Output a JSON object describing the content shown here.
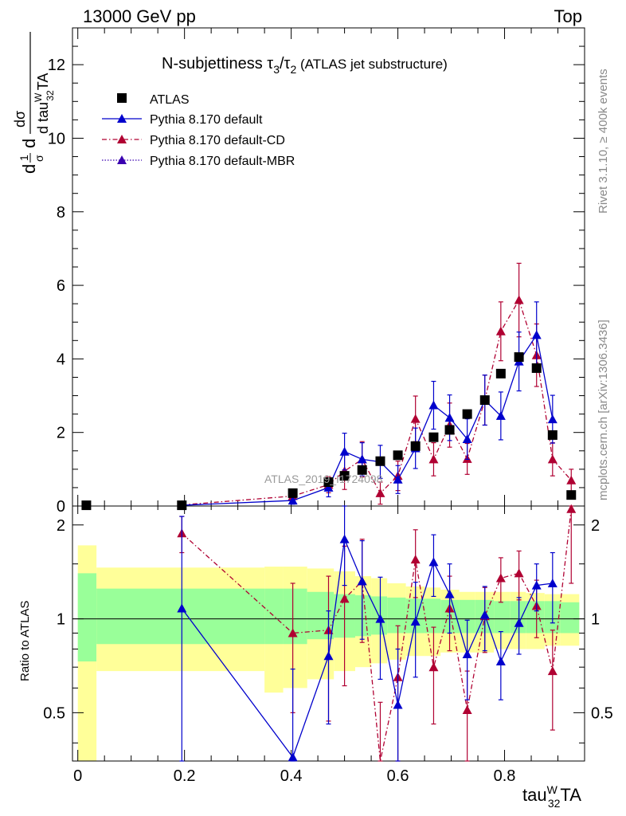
{
  "header": {
    "left": "13000 GeV pp",
    "right": "Top"
  },
  "title": {
    "main": "N-subjettiness τ",
    "sub1": "3",
    "slash": "/τ",
    "sub2": "2",
    "suffix": " (ATLAS jet substructure)"
  },
  "side_labels": {
    "rivet": "Rivet 3.1.10, ≥ 400k events",
    "mcplots": "mcplots.cern.ch [arXiv:1306.3436]"
  },
  "watermark": "ATLAS_2019_I1724098",
  "y_label_main": {
    "d1": "d",
    "frac_num": "1",
    "frac_den": "σ",
    "d2": "d",
    "sig": "dσ",
    "den": "d tau",
    "den_sup": "W",
    "den_sub": "32",
    "den_end": "TA"
  },
  "y_label_ratio": "Ratio to ATLAS",
  "x_label": {
    "base": "tau",
    "sup": "W",
    "sub": "32",
    "end": "TA"
  },
  "legend": [
    {
      "label": "ATLAS",
      "color": "#000000",
      "style": "square"
    },
    {
      "label": "Pythia 8.170 default",
      "color": "#0000cc",
      "style": "solid"
    },
    {
      "label": "Pythia 8.170 default-CD",
      "color": "#b00032",
      "style": "dashdot"
    },
    {
      "label": "Pythia 8.170 default-MBR",
      "color": "#3a00b0",
      "style": "dotted"
    }
  ],
  "chart_data": {
    "type": "scatter",
    "xlim": [
      -0.01,
      0.95
    ],
    "ylim_main": [
      0,
      13
    ],
    "ylim_ratio": [
      0.35,
      2.3
    ],
    "xticks": [
      0,
      0.2,
      0.4,
      0.6,
      0.8
    ],
    "xtick_labels": [
      "0",
      "0.2",
      "0.4",
      "0.6",
      "0.8"
    ],
    "yticks_main": [
      0,
      2,
      4,
      6,
      8,
      10,
      12
    ],
    "yticks_main_labels": [
      "0",
      "2",
      "4",
      "6",
      "8",
      "10",
      "12"
    ],
    "yticks_ratio": [
      0.5,
      1,
      2
    ],
    "yticks_ratio_labels": [
      "0.5",
      "1",
      "2"
    ],
    "atlas": {
      "x": [
        0.016,
        0.195,
        0.403,
        0.47,
        0.5,
        0.533,
        0.567,
        0.6,
        0.633,
        0.667,
        0.697,
        0.73,
        0.763,
        0.793,
        0.827,
        0.86,
        0.89,
        0.925
      ],
      "y": [
        0.02,
        0.02,
        0.35,
        0.65,
        0.82,
        0.98,
        1.22,
        1.38,
        1.63,
        1.87,
        2.07,
        2.5,
        2.88,
        3.6,
        4.05,
        3.75,
        1.93,
        0.3
      ]
    },
    "default": {
      "x": [
        0.195,
        0.403,
        0.47,
        0.5,
        0.533,
        0.567,
        0.6,
        0.633,
        0.667,
        0.697,
        0.73,
        0.763,
        0.793,
        0.827,
        0.86,
        0.89
      ],
      "y": [
        0.02,
        0.15,
        0.5,
        1.48,
        1.27,
        1.2,
        0.72,
        1.57,
        2.74,
        2.4,
        1.82,
        2.88,
        2.45,
        3.93,
        4.65,
        2.36
      ],
      "err": [
        0.0,
        0.1,
        0.25,
        0.5,
        0.45,
        0.45,
        0.38,
        0.55,
        0.65,
        0.62,
        0.55,
        0.68,
        0.65,
        0.8,
        0.9,
        0.65
      ]
    },
    "default_cd": {
      "x": [
        0.195,
        0.403,
        0.47,
        0.5,
        0.533,
        0.567,
        0.6,
        0.633,
        0.667,
        0.697,
        0.73,
        0.763,
        0.793,
        0.827,
        0.86,
        0.89,
        0.925
      ],
      "y": [
        0.03,
        0.27,
        0.58,
        0.95,
        1.27,
        0.35,
        0.82,
        2.37,
        1.27,
        2.2,
        1.28,
        2.88,
        4.75,
        5.6,
        4.1,
        1.27,
        0.7
      ],
      "err": [
        0.0,
        0.12,
        0.22,
        0.5,
        0.48,
        0.3,
        0.4,
        0.62,
        0.45,
        0.6,
        0.42,
        0.68,
        0.8,
        1.0,
        0.85,
        0.45,
        0.3
      ]
    },
    "ratio_default": {
      "x": [
        0.195,
        0.403,
        0.47,
        0.5,
        0.533,
        0.567,
        0.6,
        0.633,
        0.667,
        0.697,
        0.73,
        0.763,
        0.793,
        0.827,
        0.86,
        0.89
      ],
      "y": [
        1.08,
        0.36,
        0.76,
        1.8,
        1.32,
        1.0,
        0.53,
        0.98,
        1.52,
        1.2,
        0.77,
        1.03,
        0.73,
        0.97,
        1.28,
        1.3
      ],
      "err": [
        1.05,
        0.33,
        0.3,
        0.52,
        0.46,
        0.36,
        0.27,
        0.33,
        0.34,
        0.3,
        0.22,
        0.24,
        0.18,
        0.2,
        0.22,
        0.33
      ]
    },
    "ratio_cd": {
      "x": [
        0.195,
        0.403,
        0.47,
        0.5,
        0.533,
        0.567,
        0.6,
        0.633,
        0.667,
        0.697,
        0.73,
        0.763,
        0.793,
        0.827,
        0.86,
        0.89,
        0.925
      ],
      "y": [
        1.88,
        0.9,
        0.92,
        1.16,
        1.32,
        0.29,
        0.65,
        1.55,
        0.7,
        1.08,
        0.51,
        1.02,
        1.35,
        1.4,
        1.1,
        0.68,
        2.25
      ],
      "err": [
        0.25,
        0.4,
        0.45,
        0.55,
        0.48,
        0.25,
        0.3,
        0.38,
        0.24,
        0.29,
        0.17,
        0.24,
        0.22,
        0.25,
        0.23,
        0.24,
        0.95
      ]
    },
    "bands": {
      "x_edges": [
        0.0,
        0.035,
        0.35,
        0.385,
        0.43,
        0.48,
        0.52,
        0.55,
        0.58,
        0.615,
        0.65,
        0.68,
        0.715,
        0.745,
        0.78,
        0.81,
        0.84,
        0.875,
        0.905,
        0.94
      ],
      "inner_lo": [
        0.73,
        0.83,
        0.83,
        0.83,
        0.86,
        0.87,
        0.88,
        0.89,
        0.9,
        0.9,
        0.9,
        0.9,
        0.9,
        0.9,
        0.9,
        0.9,
        0.9,
        0.9,
        0.9
      ],
      "inner_hi": [
        1.4,
        1.25,
        1.25,
        1.25,
        1.22,
        1.2,
        1.19,
        1.18,
        1.17,
        1.16,
        1.16,
        1.15,
        1.15,
        1.15,
        1.14,
        1.14,
        1.14,
        1.14,
        1.13
      ],
      "outer_lo": [
        0.0,
        0.68,
        0.58,
        0.6,
        0.64,
        0.68,
        0.7,
        0.72,
        0.74,
        0.76,
        0.76,
        0.78,
        0.78,
        0.78,
        0.8,
        0.8,
        0.8,
        0.82,
        0.82
      ],
      "outer_hi": [
        1.72,
        1.46,
        1.47,
        1.47,
        1.45,
        1.42,
        1.37,
        1.35,
        1.3,
        1.27,
        1.26,
        1.24,
        1.22,
        1.22,
        1.22,
        1.22,
        1.21,
        1.2,
        1.2
      ]
    },
    "colors": {
      "atlas": "#000000",
      "default": "#0000cc",
      "cd": "#b00032",
      "band_inner": "#99ff99",
      "band_outer": "#ffff99"
    }
  }
}
